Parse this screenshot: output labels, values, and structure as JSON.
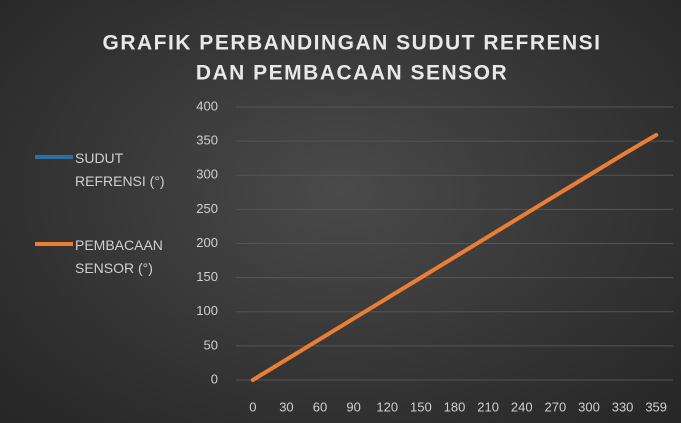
{
  "chart_data": {
    "type": "line",
    "title": [
      "GRAFIK PERBANDINGAN SUDUT REFRENSI",
      "DAN PEMBACAAN SENSOR"
    ],
    "categories": [
      "0",
      "30",
      "60",
      "90",
      "120",
      "150",
      "180",
      "210",
      "240",
      "270",
      "300",
      "330",
      "359"
    ],
    "series": [
      {
        "name": "SUDUT REFRENSI (°)",
        "color": "#2b6fa3",
        "values": [
          0,
          30,
          60,
          90,
          120,
          150,
          180,
          210,
          240,
          270,
          300,
          330,
          359
        ]
      },
      {
        "name": "PEMBACAAN SENSOR (°)",
        "color": "#ed7d31",
        "values": [
          0,
          30,
          60,
          90,
          120,
          150,
          180,
          210,
          240,
          270,
          300,
          330,
          359
        ]
      }
    ],
    "ylim": [
      0,
      400
    ],
    "yticks": [
      0,
      50,
      100,
      150,
      200,
      250,
      300,
      350,
      400
    ],
    "grid": true,
    "legend": "left"
  }
}
